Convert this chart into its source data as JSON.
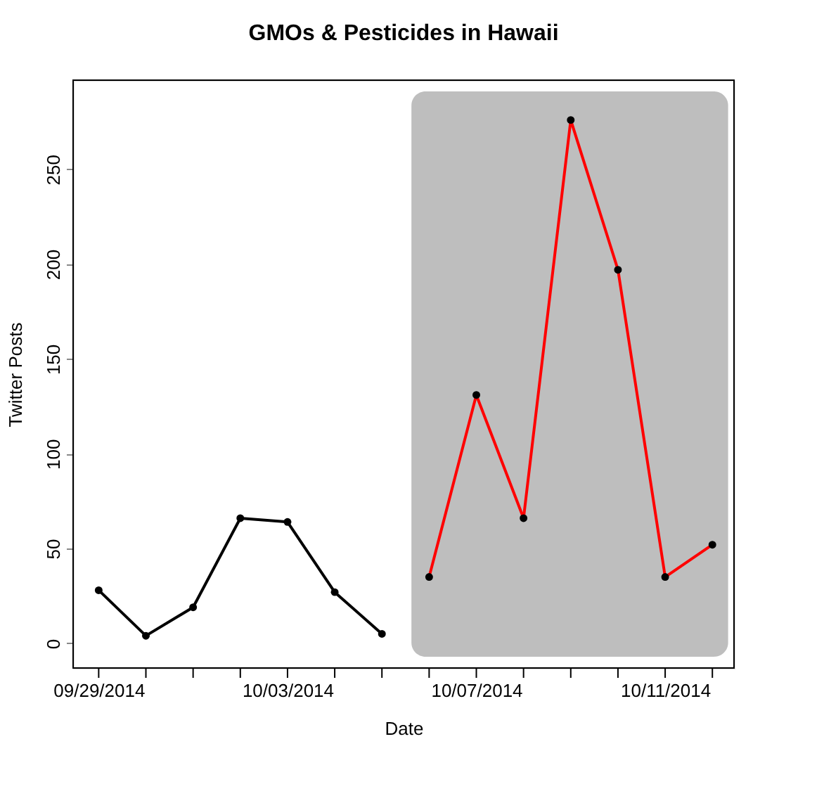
{
  "chart_data": {
    "type": "line",
    "title": "GMOs & Pesticides in Hawaii",
    "xlabel": "Date",
    "ylabel": "Twitter Posts",
    "series": [
      {
        "color": "#000000",
        "x": [
          "2014-09-29",
          "2014-09-30",
          "2014-10-01",
          "2014-10-02",
          "2014-10-03",
          "2014-10-04",
          "2014-10-05"
        ],
        "values": [
          28,
          4,
          19,
          66,
          64,
          27,
          5
        ]
      },
      {
        "color": "#ff0000",
        "x": [
          "2014-10-06",
          "2014-10-07",
          "2014-10-08",
          "2014-10-09",
          "2014-10-10",
          "2014-10-11",
          "2014-10-12"
        ],
        "values": [
          35,
          131,
          66,
          276,
          197,
          35,
          52
        ]
      }
    ],
    "xlim": [
      "2014-09-28T11:00",
      "2014-10-12T11:00"
    ],
    "xticks": [
      {
        "value": "2014-09-29",
        "label": "09/29/2014"
      },
      {
        "value": "2014-09-30",
        "label": null
      },
      {
        "value": "2014-10-01",
        "label": null
      },
      {
        "value": "2014-10-02",
        "label": null
      },
      {
        "value": "2014-10-03",
        "label": "10/03/2014"
      },
      {
        "value": "2014-10-04",
        "label": null
      },
      {
        "value": "2014-10-05",
        "label": null
      },
      {
        "value": "2014-10-06",
        "label": null
      },
      {
        "value": "2014-10-07",
        "label": "10/07/2014"
      },
      {
        "value": "2014-10-08",
        "label": null
      },
      {
        "value": "2014-10-09",
        "label": null
      },
      {
        "value": "2014-10-10",
        "label": null
      },
      {
        "value": "2014-10-11",
        "label": "10/11/2014"
      },
      {
        "value": "2014-10-12",
        "label": null
      }
    ],
    "ylim": [
      -13,
      297
    ],
    "yticks": [
      0,
      50,
      100,
      150,
      200,
      250
    ],
    "bands": [
      {
        "axis": "x",
        "from": "2014-10-05T15:00",
        "to": "2014-10-12T08:00",
        "color": "#bebebe"
      }
    ],
    "marker": "circle",
    "line_style": "solid",
    "grid": false
  }
}
